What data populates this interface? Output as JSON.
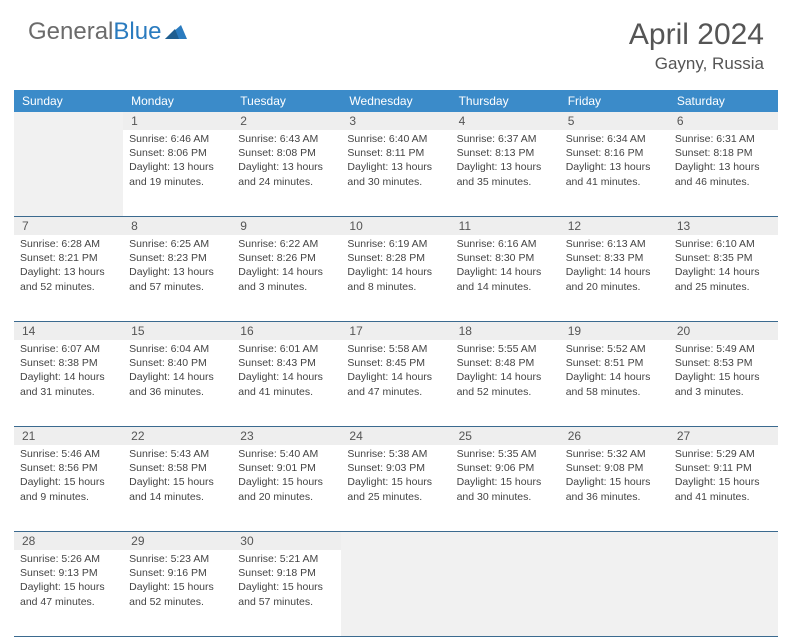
{
  "brand": {
    "part1": "General",
    "part2": "Blue"
  },
  "title": "April 2024",
  "location": "Gayny, Russia",
  "colors": {
    "header_bg": "#3b8bc9",
    "header_text": "#ffffff",
    "daynum_bg": "#eeeeee",
    "border": "#3b6a8f",
    "blank_bg": "#f1f1f1",
    "title_color": "#555555",
    "logo_gray": "#6b6b6b",
    "logo_blue": "#2a7bbf"
  },
  "dow": [
    "Sunday",
    "Monday",
    "Tuesday",
    "Wednesday",
    "Thursday",
    "Friday",
    "Saturday"
  ],
  "weeks": [
    [
      {
        "blank": true
      },
      {
        "n": "1",
        "sr": "6:46 AM",
        "ss": "8:06 PM",
        "dl": "13 hours and 19 minutes."
      },
      {
        "n": "2",
        "sr": "6:43 AM",
        "ss": "8:08 PM",
        "dl": "13 hours and 24 minutes."
      },
      {
        "n": "3",
        "sr": "6:40 AM",
        "ss": "8:11 PM",
        "dl": "13 hours and 30 minutes."
      },
      {
        "n": "4",
        "sr": "6:37 AM",
        "ss": "8:13 PM",
        "dl": "13 hours and 35 minutes."
      },
      {
        "n": "5",
        "sr": "6:34 AM",
        "ss": "8:16 PM",
        "dl": "13 hours and 41 minutes."
      },
      {
        "n": "6",
        "sr": "6:31 AM",
        "ss": "8:18 PM",
        "dl": "13 hours and 46 minutes."
      }
    ],
    [
      {
        "n": "7",
        "sr": "6:28 AM",
        "ss": "8:21 PM",
        "dl": "13 hours and 52 minutes."
      },
      {
        "n": "8",
        "sr": "6:25 AM",
        "ss": "8:23 PM",
        "dl": "13 hours and 57 minutes."
      },
      {
        "n": "9",
        "sr": "6:22 AM",
        "ss": "8:26 PM",
        "dl": "14 hours and 3 minutes."
      },
      {
        "n": "10",
        "sr": "6:19 AM",
        "ss": "8:28 PM",
        "dl": "14 hours and 8 minutes."
      },
      {
        "n": "11",
        "sr": "6:16 AM",
        "ss": "8:30 PM",
        "dl": "14 hours and 14 minutes."
      },
      {
        "n": "12",
        "sr": "6:13 AM",
        "ss": "8:33 PM",
        "dl": "14 hours and 20 minutes."
      },
      {
        "n": "13",
        "sr": "6:10 AM",
        "ss": "8:35 PM",
        "dl": "14 hours and 25 minutes."
      }
    ],
    [
      {
        "n": "14",
        "sr": "6:07 AM",
        "ss": "8:38 PM",
        "dl": "14 hours and 31 minutes."
      },
      {
        "n": "15",
        "sr": "6:04 AM",
        "ss": "8:40 PM",
        "dl": "14 hours and 36 minutes."
      },
      {
        "n": "16",
        "sr": "6:01 AM",
        "ss": "8:43 PM",
        "dl": "14 hours and 41 minutes."
      },
      {
        "n": "17",
        "sr": "5:58 AM",
        "ss": "8:45 PM",
        "dl": "14 hours and 47 minutes."
      },
      {
        "n": "18",
        "sr": "5:55 AM",
        "ss": "8:48 PM",
        "dl": "14 hours and 52 minutes."
      },
      {
        "n": "19",
        "sr": "5:52 AM",
        "ss": "8:51 PM",
        "dl": "14 hours and 58 minutes."
      },
      {
        "n": "20",
        "sr": "5:49 AM",
        "ss": "8:53 PM",
        "dl": "15 hours and 3 minutes."
      }
    ],
    [
      {
        "n": "21",
        "sr": "5:46 AM",
        "ss": "8:56 PM",
        "dl": "15 hours and 9 minutes."
      },
      {
        "n": "22",
        "sr": "5:43 AM",
        "ss": "8:58 PM",
        "dl": "15 hours and 14 minutes."
      },
      {
        "n": "23",
        "sr": "5:40 AM",
        "ss": "9:01 PM",
        "dl": "15 hours and 20 minutes."
      },
      {
        "n": "24",
        "sr": "5:38 AM",
        "ss": "9:03 PM",
        "dl": "15 hours and 25 minutes."
      },
      {
        "n": "25",
        "sr": "5:35 AM",
        "ss": "9:06 PM",
        "dl": "15 hours and 30 minutes."
      },
      {
        "n": "26",
        "sr": "5:32 AM",
        "ss": "9:08 PM",
        "dl": "15 hours and 36 minutes."
      },
      {
        "n": "27",
        "sr": "5:29 AM",
        "ss": "9:11 PM",
        "dl": "15 hours and 41 minutes."
      }
    ],
    [
      {
        "n": "28",
        "sr": "5:26 AM",
        "ss": "9:13 PM",
        "dl": "15 hours and 47 minutes."
      },
      {
        "n": "29",
        "sr": "5:23 AM",
        "ss": "9:16 PM",
        "dl": "15 hours and 52 minutes."
      },
      {
        "n": "30",
        "sr": "5:21 AM",
        "ss": "9:18 PM",
        "dl": "15 hours and 57 minutes."
      },
      {
        "blank": true
      },
      {
        "blank": true
      },
      {
        "blank": true
      },
      {
        "blank": true
      }
    ]
  ],
  "labels": {
    "sunrise": "Sunrise: ",
    "sunset": "Sunset: ",
    "daylight": "Daylight: "
  }
}
